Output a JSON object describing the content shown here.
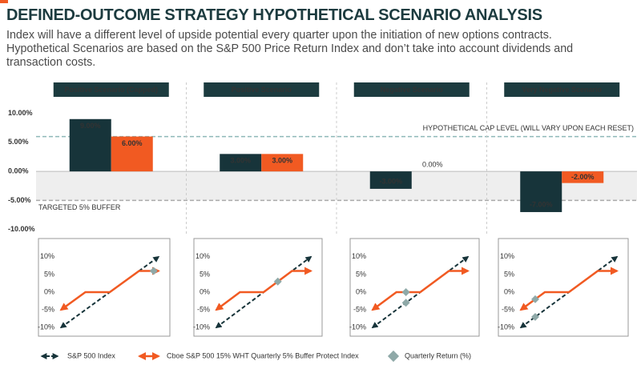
{
  "header": {
    "title": "DEFINED-OUTCOME STRATEGY HYPOTHETICAL SCENARIO ANALYSIS",
    "subtitle": "Index will have a different level of upside potential every quarter upon the initiation of new options contracts. Hypothetical Scenarios are based on the S&P 500 Price Return Index and don’t take into account dividends and transaction costs."
  },
  "chart_data": [
    {
      "type": "bar",
      "categories": [
        "Positive Scenario (Capped)",
        "Positive Scenario",
        "Negative Scenario",
        "Very Negative Scenario"
      ],
      "series": [
        {
          "name": "S&P 500 Index",
          "color": "#17343a",
          "values": [
            9,
            3,
            -3,
            -7
          ],
          "value_labels": [
            "9.00%",
            "3.00%",
            "-3.00%",
            "-7.00%"
          ]
        },
        {
          "name": "Cboe S&P 500 15% WHT Quarterly 5% Buffer Protect Index",
          "color": "#f15a22",
          "values": [
            6,
            3,
            0,
            -2
          ],
          "value_labels": [
            "6.00%",
            "3.00%",
            "0.00%",
            "-2.00%"
          ]
        }
      ],
      "extra_legend": [
        {
          "name": "Quarterly Return (%)",
          "color": "#8fa9a8"
        }
      ],
      "cap_line": {
        "value": 6,
        "label": "HYPOTHETICAL CAP LEVEL (WILL VARY UPON EACH RESET)",
        "color": "#8fb8b8"
      },
      "buffer_line": {
        "value": -5,
        "label": "TARGETED 5% BUFFER",
        "color": "#aaaaaa"
      },
      "ylim": [
        -11,
        12
      ],
      "yticks": [
        {
          "value": 10,
          "label": "10.00%"
        },
        {
          "value": 5,
          "label": "5.00%"
        },
        {
          "value": 0,
          "label": "0.00%"
        },
        {
          "value": -5,
          "label": "-5.00%"
        },
        {
          "value": -10,
          "label": "-10.00%"
        }
      ]
    },
    {
      "type": "line",
      "xlim": [
        -11,
        11
      ],
      "ylim": [
        -12,
        12
      ],
      "yticks": [
        {
          "value": 10,
          "label": "10%"
        },
        {
          "value": 5,
          "label": "5%"
        },
        {
          "value": 0,
          "label": "0%"
        },
        {
          "value": -5,
          "label": "-5%"
        },
        {
          "value": -10,
          "label": "-10%"
        }
      ],
      "series": [
        {
          "color": "#17343a",
          "dashed": true,
          "x": [
            -10,
            10
          ],
          "values": [
            -10,
            10
          ]
        },
        {
          "color": "#f15a22",
          "x": [
            -10,
            -5,
            0,
            6,
            10
          ],
          "values": [
            -5,
            0,
            0,
            6,
            6
          ]
        },
        {
          "type": "scatter",
          "color": "#8fa9a8",
          "x": [
            9
          ],
          "values": [
            6
          ]
        }
      ]
    },
    {
      "type": "line",
      "xlim": [
        -11,
        11
      ],
      "ylim": [
        -12,
        12
      ],
      "yticks": [
        {
          "value": 10,
          "label": "10%"
        },
        {
          "value": 5,
          "label": "5%"
        },
        {
          "value": 0,
          "label": "0%"
        },
        {
          "value": -5,
          "label": "-5%"
        },
        {
          "value": -10,
          "label": "-10%"
        }
      ],
      "series": [
        {
          "color": "#17343a",
          "dashed": true,
          "x": [
            -10,
            10
          ],
          "values": [
            -10,
            10
          ]
        },
        {
          "color": "#f15a22",
          "x": [
            -10,
            -5,
            0,
            6,
            10
          ],
          "values": [
            -5,
            0,
            0,
            6,
            6
          ]
        },
        {
          "type": "scatter",
          "color": "#8fa9a8",
          "x": [
            3
          ],
          "values": [
            3
          ]
        }
      ]
    },
    {
      "type": "line",
      "xlim": [
        -11,
        11
      ],
      "ylim": [
        -12,
        12
      ],
      "yticks": [
        {
          "value": 10,
          "label": "10%"
        },
        {
          "value": 5,
          "label": "5%"
        },
        {
          "value": 0,
          "label": "0%"
        },
        {
          "value": -5,
          "label": "-5%"
        },
        {
          "value": -10,
          "label": "-10%"
        }
      ],
      "series": [
        {
          "color": "#17343a",
          "dashed": true,
          "x": [
            -10,
            10
          ],
          "values": [
            -10,
            10
          ]
        },
        {
          "color": "#f15a22",
          "x": [
            -10,
            -5,
            0,
            6,
            10
          ],
          "values": [
            -5,
            0,
            0,
            6,
            6
          ]
        },
        {
          "type": "scatter",
          "color": "#8fa9a8",
          "x": [
            -3,
            -3
          ],
          "values": [
            0,
            -3
          ]
        }
      ]
    },
    {
      "type": "line",
      "xlim": [
        -11,
        11
      ],
      "ylim": [
        -12,
        12
      ],
      "yticks": [
        {
          "value": 10,
          "label": "10%"
        },
        {
          "value": 5,
          "label": "5%"
        },
        {
          "value": 0,
          "label": "0%"
        },
        {
          "value": -5,
          "label": "-5%"
        },
        {
          "value": -10,
          "label": "-10%"
        }
      ],
      "series": [
        {
          "color": "#17343a",
          "dashed": true,
          "x": [
            -10,
            10
          ],
          "values": [
            -10,
            10
          ]
        },
        {
          "color": "#f15a22",
          "x": [
            -10,
            -5,
            0,
            6,
            10
          ],
          "values": [
            -5,
            0,
            0,
            6,
            6
          ]
        },
        {
          "type": "scatter",
          "color": "#8fa9a8",
          "x": [
            -7,
            -7
          ],
          "values": [
            -2,
            -7
          ]
        }
      ]
    }
  ]
}
